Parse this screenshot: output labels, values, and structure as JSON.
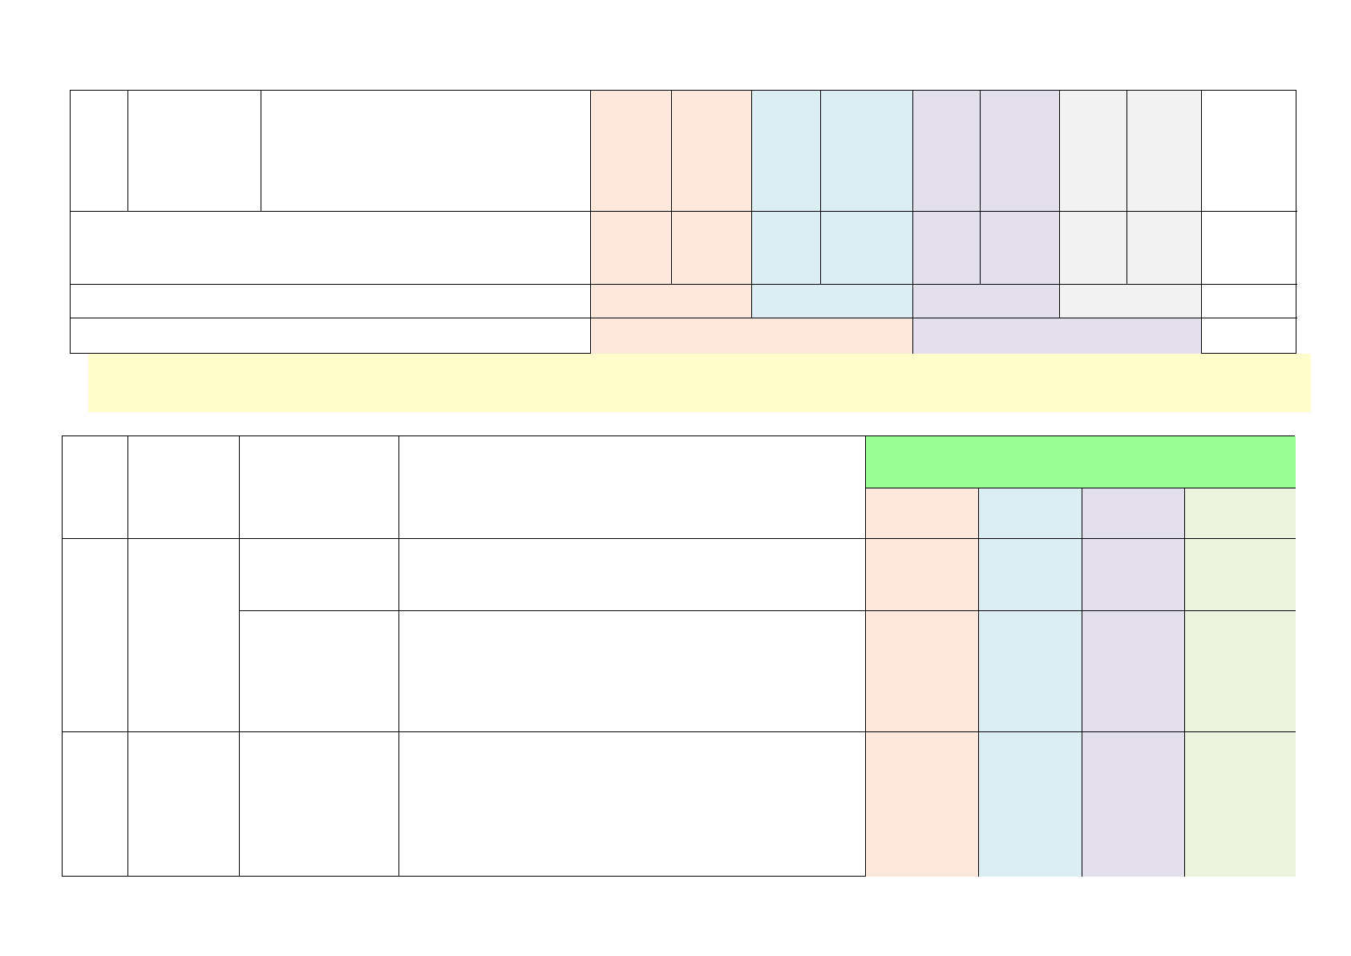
{
  "colors": {
    "peach": "#fbe8da",
    "light_blue": "#daeef4",
    "lavender": "#e4dfec",
    "light_gray": "#f2f2f2",
    "sage": "#ebf2dd",
    "bright_green": "#9cff96",
    "note_yellow": "#fffdcc"
  },
  "table1": {
    "header": {
      "c1": "",
      "c2": "",
      "c3": "",
      "peach1": "",
      "peach2": "",
      "blue1": "",
      "blue2": "",
      "lav1": "",
      "lav2": "",
      "gray1": "",
      "gray2": "",
      "last": ""
    },
    "row2": {
      "label": "",
      "peach1": "",
      "peach2": "",
      "blue1": "",
      "blue2": "",
      "lav1": "",
      "lav2": "",
      "gray1": "",
      "gray2": "",
      "last": ""
    },
    "row3": {
      "label": "",
      "peach": "",
      "blue": "",
      "lav": "",
      "gray": "",
      "last": ""
    },
    "row4": {
      "label": "",
      "peach_blue": "",
      "lav_gray": "",
      "last": ""
    }
  },
  "note": "",
  "table2": {
    "header": {
      "c1": "",
      "c2": "",
      "c3": "",
      "c4": "",
      "green": "",
      "peach": "",
      "blue": "",
      "lav": "",
      "sage": ""
    },
    "rows": [
      {
        "c1": "",
        "c2": "",
        "c3": "",
        "c4": "",
        "peach": "",
        "blue": "",
        "lav": "",
        "sage": ""
      },
      {
        "c3": "",
        "c4": "",
        "peach": "",
        "blue": "",
        "lav": "",
        "sage": ""
      },
      {
        "c1": "",
        "c2": "",
        "c3": "",
        "c4": "",
        "peach": "",
        "blue": "",
        "lav": "",
        "sage": ""
      }
    ]
  }
}
